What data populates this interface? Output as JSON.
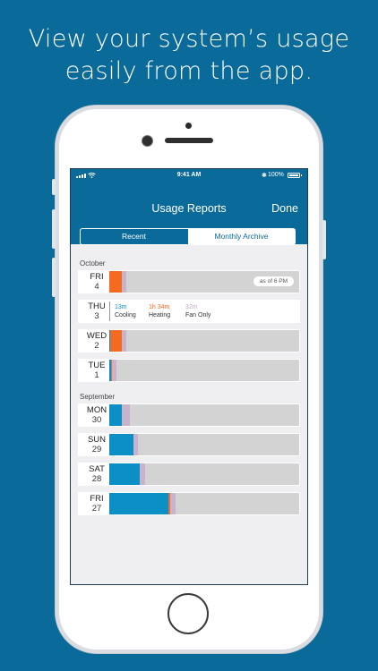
{
  "headline": [
    "View your system’s usage",
    "easily from the app."
  ],
  "status": {
    "time": "9:41 AM",
    "battery": "100%"
  },
  "nav": {
    "title": "Usage Reports",
    "done": "Done"
  },
  "tabs": [
    {
      "label": "Recent",
      "active": true
    },
    {
      "label": "Monthly Archive",
      "active": false
    }
  ],
  "colors": {
    "cooling": "#0c8fc4",
    "heating": "#f26b21",
    "fan": "#c7b3cb",
    "background": "#0a6a99"
  },
  "legend": {
    "cooling": {
      "value": "13m",
      "label": "Cooling"
    },
    "heating": {
      "value": "1h 34m",
      "label": "Heating"
    },
    "fan": {
      "value": "32m",
      "label": "Fan Only"
    }
  },
  "months": [
    {
      "name": "October",
      "days": [
        {
          "dow": "FRI",
          "num": "4",
          "note": "as of 6 PM"
        },
        {
          "dow": "THU",
          "num": "3",
          "legend": true
        },
        {
          "dow": "WED",
          "num": "2"
        },
        {
          "dow": "TUE",
          "num": "1"
        }
      ]
    },
    {
      "name": "September",
      "days": [
        {
          "dow": "MON",
          "num": "30"
        },
        {
          "dow": "SUN",
          "num": "29"
        },
        {
          "dow": "SAT",
          "num": "28"
        },
        {
          "dow": "FRI",
          "num": "27"
        }
      ]
    }
  ],
  "usage_minutes": {
    "oct-4": {
      "cooling": 0,
      "heating": 94,
      "fan": 32
    },
    "oct-2": {
      "cooling": 3,
      "heating": 94,
      "fan": 32
    },
    "oct-1": {
      "cooling": 15,
      "heating": 4,
      "fan": 32
    },
    "sep-30": {
      "cooling": 94,
      "heating": 0,
      "fan": 60
    },
    "sep-29": {
      "cooling": 185,
      "heating": 0,
      "fan": 32
    },
    "sep-28": {
      "cooling": 230,
      "heating": 0,
      "fan": 40
    },
    "sep-27": {
      "cooling": 450,
      "heating": 10,
      "fan": 40
    }
  }
}
